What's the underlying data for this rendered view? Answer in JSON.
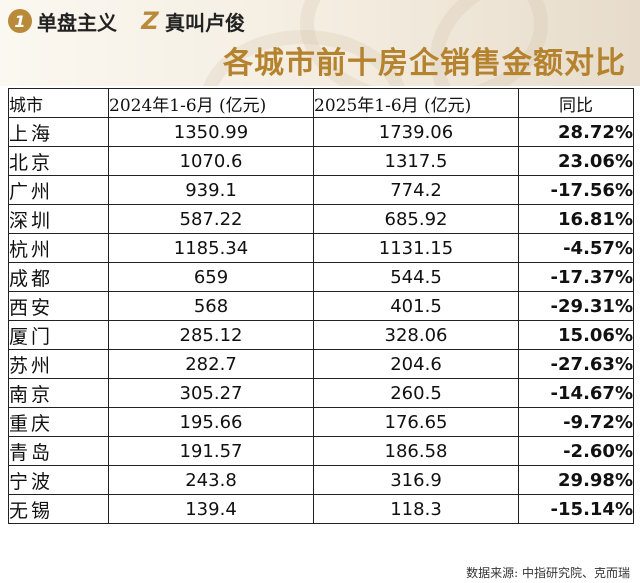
{
  "brand": {
    "item1": {
      "badge": "1",
      "text": "单盘主义"
    },
    "item2": {
      "badge": "Z",
      "text": "真叫卢俊"
    }
  },
  "title": "各城市前十房企销售金额对比",
  "table": {
    "headers": {
      "city": "城市",
      "y2024": "2024年1-6月 (亿元)",
      "y2025": "2025年1-6月 (亿元)",
      "yoy": "同比"
    },
    "rows": [
      {
        "city": "上海",
        "y2024": "1350.99",
        "y2025": "1739.06",
        "yoy": "28.72%"
      },
      {
        "city": "北京",
        "y2024": "1070.6",
        "y2025": "1317.5",
        "yoy": "23.06%"
      },
      {
        "city": "广州",
        "y2024": "939.1",
        "y2025": "774.2",
        "yoy": "-17.56%"
      },
      {
        "city": "深圳",
        "y2024": "587.22",
        "y2025": "685.92",
        "yoy": "16.81%"
      },
      {
        "city": "杭州",
        "y2024": "1185.34",
        "y2025": "1131.15",
        "yoy": "-4.57%"
      },
      {
        "city": "成都",
        "y2024": "659",
        "y2025": "544.5",
        "yoy": "-17.37%"
      },
      {
        "city": "西安",
        "y2024": "568",
        "y2025": "401.5",
        "yoy": "-29.31%"
      },
      {
        "city": "厦门",
        "y2024": "285.12",
        "y2025": "328.06",
        "yoy": "15.06%"
      },
      {
        "city": "苏州",
        "y2024": "282.7",
        "y2025": "204.6",
        "yoy": "-27.63%"
      },
      {
        "city": "南京",
        "y2024": "305.27",
        "y2025": "260.5",
        "yoy": "-14.67%"
      },
      {
        "city": "重庆",
        "y2024": "195.66",
        "y2025": "176.65",
        "yoy": "-9.72%"
      },
      {
        "city": "青岛",
        "y2024": "191.57",
        "y2025": "186.58",
        "yoy": "-2.60%"
      },
      {
        "city": "宁波",
        "y2024": "243.8",
        "y2025": "316.9",
        "yoy": "29.98%"
      },
      {
        "city": "无锡",
        "y2024": "139.4",
        "y2025": "118.3",
        "yoy": "-15.14%"
      }
    ]
  },
  "source": "数据来源: 中指研究院、克而瑞",
  "colors": {
    "accent": "#b5822e",
    "badge": "#b98a3a"
  }
}
